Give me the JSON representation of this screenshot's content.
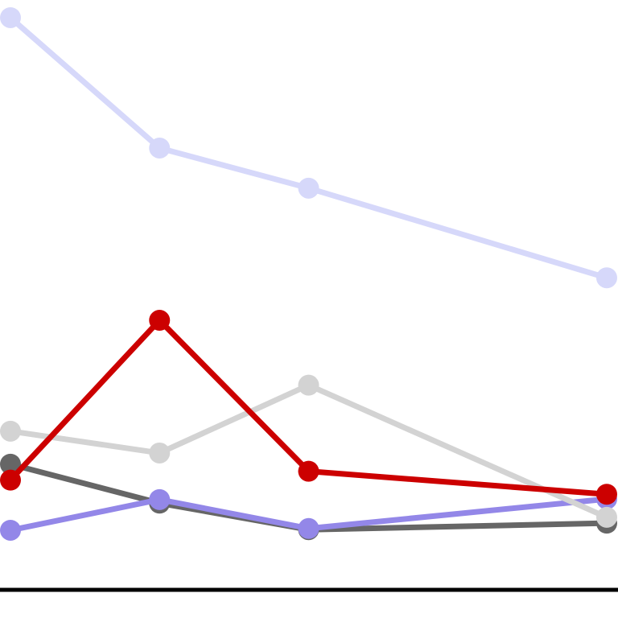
{
  "chart_data": {
    "type": "line",
    "title": "",
    "xlabel": "",
    "ylabel": "",
    "x": [
      0,
      1,
      2,
      4
    ],
    "xlim": [
      0,
      4
    ],
    "ylim": [
      0,
      100
    ],
    "grid": false,
    "legend": "none",
    "series": [
      {
        "color": "#d6d8fa",
        "values": [
          97.0,
          74.9,
          68.1,
          52.9
        ]
      },
      {
        "color": "#666666",
        "values": [
          21.3,
          14.7,
          10.2,
          11.3
        ]
      },
      {
        "color": "#9387e8",
        "values": [
          10.1,
          15.3,
          10.4,
          15.4
        ]
      },
      {
        "color": "#d3d3d3",
        "values": [
          26.9,
          23.2,
          34.7,
          12.3
        ]
      },
      {
        "color": "#cc0000",
        "values": [
          18.6,
          45.7,
          20.1,
          16.2
        ]
      }
    ]
  }
}
